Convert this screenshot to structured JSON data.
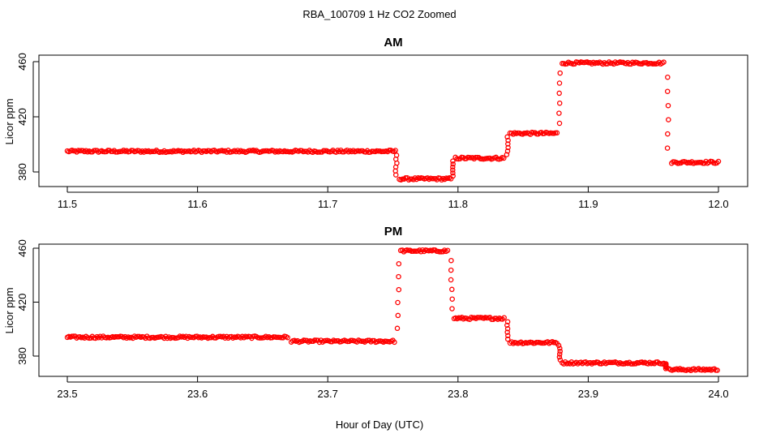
{
  "title": "RBA_100709  1 Hz CO2 Zoomed",
  "xlabel": "Hour of Day (UTC)",
  "chart_data": [
    {
      "type": "scatter",
      "title": "AM",
      "ylabel": "Licor ppm",
      "xlim": [
        11.5,
        12.0
      ],
      "ylim": [
        368,
        466
      ],
      "xticks": [
        "11.5",
        "11.6",
        "11.7",
        "11.8",
        "11.9",
        "12.0"
      ],
      "yticks": [
        "380",
        "420",
        "460"
      ],
      "color": "#ff0000",
      "segments": [
        {
          "x": [
            11.5,
            11.752
          ],
          "y": 395
        },
        {
          "x": [
            11.755,
            11.795
          ],
          "y": 375
        },
        {
          "x": [
            11.798,
            11.836
          ],
          "y": 390
        },
        {
          "x": [
            11.84,
            11.876
          ],
          "y": 408
        },
        {
          "x": [
            11.88,
            11.958
          ],
          "y": 459
        },
        {
          "x": [
            11.964,
            12.0
          ],
          "y": 387
        }
      ],
      "transitions": [
        {
          "x": 11.7525,
          "y": [
            395,
            375
          ]
        },
        {
          "x": 11.796,
          "y": [
            375,
            390
          ]
        },
        {
          "x": 11.838,
          "y": [
            390,
            408
          ]
        },
        {
          "x": 11.878,
          "y": [
            408,
            459
          ]
        },
        {
          "x": 11.961,
          "y": [
            459,
            387
          ]
        }
      ]
    },
    {
      "type": "scatter",
      "title": "PM",
      "ylabel": "Licor ppm",
      "xlim": [
        23.5,
        24.0
      ],
      "ylim": [
        366,
        466
      ],
      "xticks": [
        "23.5",
        "23.6",
        "23.7",
        "23.8",
        "23.9",
        "24.0"
      ],
      "yticks": [
        "380",
        "420",
        "460"
      ],
      "color": "#ff0000",
      "segments": [
        {
          "x": [
            23.5,
            23.67
          ],
          "y": 394
        },
        {
          "x": [
            23.672,
            23.752
          ],
          "y": 391
        },
        {
          "x": [
            23.756,
            23.793
          ],
          "y": 458
        },
        {
          "x": [
            23.797,
            23.836
          ],
          "y": 408
        },
        {
          "x": [
            23.84,
            23.876
          ],
          "y": 390
        },
        {
          "x": [
            23.88,
            23.958
          ],
          "y": 375
        },
        {
          "x": [
            23.962,
            24.0
          ],
          "y": 370
        }
      ],
      "transitions": [
        {
          "x": 23.754,
          "y": [
            391,
            458
          ]
        },
        {
          "x": 23.795,
          "y": [
            458,
            408
          ]
        },
        {
          "x": 23.838,
          "y": [
            408,
            390
          ]
        },
        {
          "x": 23.878,
          "y": [
            390,
            375
          ]
        },
        {
          "x": 23.96,
          "y": [
            375,
            370
          ]
        }
      ]
    }
  ]
}
